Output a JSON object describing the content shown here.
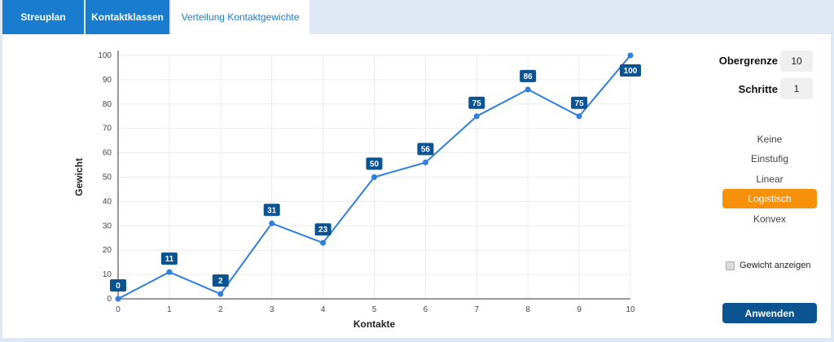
{
  "tabs": [
    {
      "label": "Streuplan",
      "active": false
    },
    {
      "label": "Kontaktklassen",
      "active": false
    },
    {
      "label": "Verteilung Kontaktgewichte",
      "active": true
    }
  ],
  "controls": {
    "upper_label": "Obergrenze",
    "upper_value": "10",
    "steps_label": "Schritte",
    "steps_value": "1",
    "options": [
      "Keine",
      "Einstufig",
      "Linear",
      "Logistisch",
      "Konvex"
    ],
    "selected_option": "Logistisch",
    "checkbox_label": "Gewicht anzeigen",
    "checkbox_checked": false,
    "apply_label": "Anwenden"
  },
  "colors": {
    "tab_active_text": "#1a7ccf",
    "tab_bg": "#1a7ccf",
    "line": "#2e7ee0",
    "data_label_bg": "#0b5391",
    "selected_option_bg": "#f7900b",
    "apply_bg": "#0b5391"
  },
  "chart_data": {
    "type": "line",
    "x": [
      0,
      1,
      2,
      3,
      4,
      5,
      6,
      7,
      8,
      9,
      10
    ],
    "values": [
      0,
      11,
      2,
      31,
      23,
      50,
      56,
      75,
      86,
      75,
      100
    ],
    "data_labels": [
      "0",
      "11",
      "2",
      "31",
      "23",
      "50",
      "56",
      "75",
      "86",
      "75",
      "100"
    ],
    "xlabel": "Kontakte",
    "ylabel": "Gewicht",
    "xlim": [
      0,
      10
    ],
    "ylim": [
      0,
      100
    ],
    "x_ticks": [
      "0",
      "1",
      "2",
      "3",
      "4",
      "5",
      "6",
      "7",
      "8",
      "9",
      "10"
    ],
    "y_ticks": [
      "0",
      "10",
      "20",
      "30",
      "40",
      "50",
      "60",
      "70",
      "80",
      "90",
      "100"
    ],
    "grid": true
  }
}
